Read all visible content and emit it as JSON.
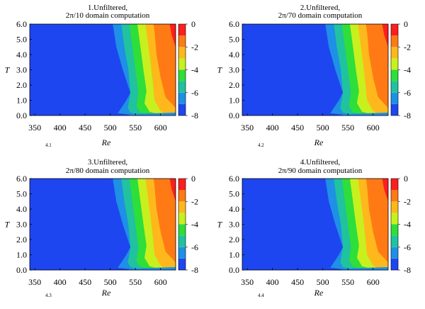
{
  "colors": {
    "levels": [
      "#1e46f0",
      "#1e90e6",
      "#20c2a0",
      "#2ede3a",
      "#c8f01e",
      "#ffb81c",
      "#ff7a14",
      "#ff1e1e"
    ],
    "blue_base": "#1e46f0"
  },
  "chart_data": [
    {
      "type": "contour",
      "title_line1": "1.Unfiltered,",
      "title_line2": "2π/10 domain computation",
      "xlabel": "Re",
      "ylabel": "T",
      "sublabel": "4.1",
      "xlim": [
        340,
        630
      ],
      "ylim": [
        0,
        6
      ],
      "xticks": [
        "350",
        "400",
        "450",
        "500",
        "550",
        "600"
      ],
      "yticks": [
        "0.0",
        "1.0",
        "2.0",
        "3.0",
        "4.0",
        "5.0",
        "6.0"
      ],
      "colorbar_range": [
        -8,
        0
      ],
      "colorbar_ticks": [
        "0",
        "-2",
        "-4",
        "-6",
        "-8"
      ],
      "contour_levels": [
        -7,
        -6,
        -5,
        -4,
        -3,
        -2,
        -1
      ]
    },
    {
      "type": "contour",
      "title_line1": "2.Unfiltered,",
      "title_line2": "2π/70 domain computation",
      "xlabel": "Re",
      "ylabel": "T",
      "sublabel": "4.2",
      "xlim": [
        340,
        630
      ],
      "ylim": [
        0,
        6
      ],
      "xticks": [
        "350",
        "400",
        "450",
        "500",
        "550",
        "600"
      ],
      "yticks": [
        "0.0",
        "1.0",
        "2.0",
        "3.0",
        "4.0",
        "5.0",
        "6.0"
      ],
      "colorbar_range": [
        -8,
        0
      ],
      "colorbar_ticks": [
        "0",
        "-2",
        "-4",
        "-6",
        "-8"
      ],
      "contour_levels": [
        -7,
        -6,
        -5,
        -4,
        -3,
        -2,
        -1
      ]
    },
    {
      "type": "contour",
      "title_line1": "3.Unfiltered,",
      "title_line2": "2π/80 domain computation",
      "xlabel": "Re",
      "ylabel": "T",
      "sublabel": "4.3",
      "xlim": [
        340,
        630
      ],
      "ylim": [
        0,
        6
      ],
      "xticks": [
        "350",
        "400",
        "450",
        "500",
        "550",
        "600"
      ],
      "yticks": [
        "0.0",
        "1.0",
        "2.0",
        "3.0",
        "4.0",
        "5.0",
        "6.0"
      ],
      "colorbar_range": [
        -8,
        0
      ],
      "colorbar_ticks": [
        "0",
        "-2",
        "-4",
        "-6",
        "-8"
      ],
      "contour_levels": [
        -7,
        -6,
        -5,
        -4,
        -3,
        -2,
        -1
      ]
    },
    {
      "type": "contour",
      "title_line1": "4.Unfiltered,",
      "title_line2": "2π/90 domain computation",
      "xlabel": "Re",
      "ylabel": "T",
      "sublabel": "4.4",
      "xlim": [
        340,
        630
      ],
      "ylim": [
        0,
        6
      ],
      "xticks": [
        "350",
        "400",
        "450",
        "500",
        "550",
        "600"
      ],
      "yticks": [
        "0.0",
        "1.0",
        "2.0",
        "3.0",
        "4.0",
        "5.0",
        "6.0"
      ],
      "colorbar_range": [
        -8,
        0
      ],
      "colorbar_ticks": [
        "0",
        "-2",
        "-4",
        "-6",
        "-8"
      ],
      "contour_levels": [
        -7,
        -6,
        -5,
        -4,
        -3,
        -2,
        -1
      ]
    }
  ]
}
